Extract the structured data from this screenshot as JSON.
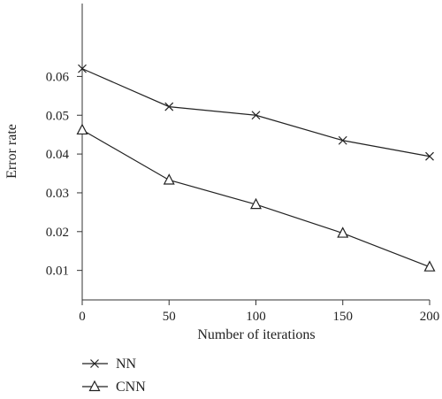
{
  "chart_data": {
    "type": "line",
    "title": "",
    "xlabel": "Number of iterations",
    "ylabel": "Error rate",
    "x": [
      0,
      50,
      100,
      150,
      200
    ],
    "xlim": [
      0,
      200
    ],
    "ylim": [
      0,
      0.066
    ],
    "x_ticks": [
      "0",
      "50",
      "100",
      "150",
      "200"
    ],
    "y_ticks": [
      {
        "value": 0.01,
        "label": "0.01"
      },
      {
        "value": 0.02,
        "label": "0.02"
      },
      {
        "value": 0.03,
        "label": "0.03"
      },
      {
        "value": 0.04,
        "label": "0.04"
      },
      {
        "value": 0.05,
        "label": "0.05"
      },
      {
        "value": 0.06,
        "label": "0.06"
      }
    ],
    "grid": false,
    "legend_position": "bottom-left",
    "series": [
      {
        "name": "NN",
        "marker": "x",
        "values": [
          0.062,
          0.0522,
          0.05,
          0.0435,
          0.0394
        ]
      },
      {
        "name": "CNN",
        "marker": "triangle",
        "values": [
          0.0462,
          0.0333,
          0.027,
          0.0196,
          0.0109
        ]
      }
    ]
  }
}
